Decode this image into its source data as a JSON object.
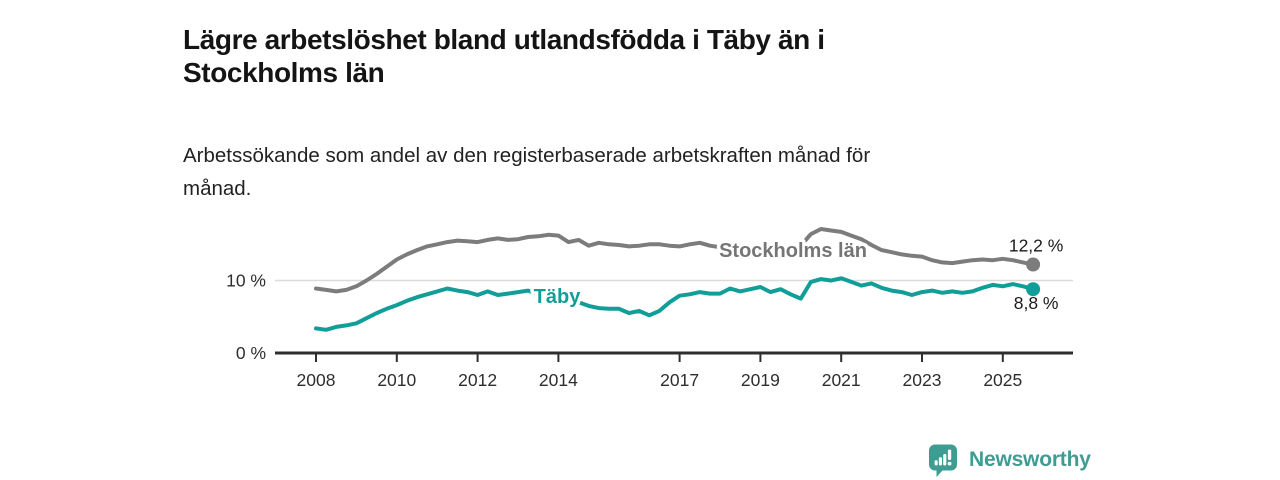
{
  "header": {
    "title_line1": "Lägre arbetslöshet bland utlandsfödda i Täby än i",
    "title_line2": "Stockholms län",
    "subtitle_line1": "Arbetssökande som andel av den registerbaserade arbetskraften månad för",
    "subtitle_line2": "månad."
  },
  "footer": {
    "brand_name": "Newsworthy",
    "logo_icon": "bar-chart-speech-bubble-icon"
  },
  "colors": {
    "accent_teal": "#119E98",
    "line_gray": "#7C7C7C",
    "label_gray": "#757575",
    "title_text": "#141414",
    "axis_text": "#2E2E2E",
    "axis_line": "#2E2E2E",
    "gridline": "#DBDBDB",
    "value_label_text": "#1A1A1A",
    "logo_teal": "#3F9C93",
    "background": "#FFFFFF"
  },
  "chart_data": {
    "type": "line",
    "title": "Lägre arbetslöshet bland utlandsfödda i Täby än i Stockholms län",
    "subtitle": "Arbetssökande som andel av den registerbaserade arbetskraften månad för månad.",
    "unit": "%",
    "grid": "single horizontal gridline at 10 %",
    "legend": "inline series labels on the lines",
    "x_start": 2008.0,
    "x_step": 0.25,
    "x_ticks": [
      {
        "year": 2008,
        "label": "2008"
      },
      {
        "year": 2010,
        "label": "2010"
      },
      {
        "year": 2012,
        "label": "2012"
      },
      {
        "year": 2014,
        "label": "2014"
      },
      {
        "year": 2017,
        "label": "2017"
      },
      {
        "year": 2019,
        "label": "2019"
      },
      {
        "year": 2021,
        "label": "2021"
      },
      {
        "year": 2023,
        "label": "2023"
      },
      {
        "year": 2025,
        "label": "2025"
      }
    ],
    "y_ticks": [
      {
        "value": 0,
        "label": "0 %",
        "gridline": false
      },
      {
        "value": 10,
        "label": "10 %",
        "gridline": true
      }
    ],
    "ylim": [
      0,
      19
    ],
    "series": [
      {
        "name": "Stockholms län",
        "color": "#7C7C7C",
        "label_color": "#757575",
        "end_label": "12,2 %",
        "end_value": 12.2,
        "values": [
          8.9,
          8.7,
          8.5,
          8.7,
          9.2,
          10.0,
          10.9,
          11.9,
          12.9,
          13.6,
          14.2,
          14.7,
          15.0,
          15.3,
          15.5,
          15.4,
          15.3,
          15.6,
          15.8,
          15.6,
          15.7,
          16.0,
          16.1,
          16.3,
          16.2,
          15.3,
          15.6,
          14.8,
          15.2,
          15.0,
          14.9,
          14.7,
          14.8,
          15.0,
          15.0,
          14.8,
          14.7,
          15.0,
          15.2,
          14.8,
          14.6,
          14.8,
          14.9,
          14.5,
          14.2,
          14.4,
          14.3,
          14.5,
          14.8,
          16.4,
          17.1,
          16.9,
          16.7,
          16.2,
          15.7,
          14.9,
          14.2,
          13.9,
          13.6,
          13.4,
          13.3,
          12.8,
          12.5,
          12.4,
          12.6,
          12.8,
          12.9,
          12.8,
          13.0,
          12.8,
          12.5,
          12.2
        ]
      },
      {
        "name": "Täby",
        "color": "#119E98",
        "label_color": "#119E98",
        "end_label": "8,8 %",
        "end_value": 8.8,
        "values": [
          3.4,
          3.2,
          3.6,
          3.8,
          4.1,
          4.8,
          5.5,
          6.1,
          6.6,
          7.2,
          7.7,
          8.1,
          8.5,
          8.9,
          8.6,
          8.4,
          8.0,
          8.5,
          8.0,
          8.2,
          8.4,
          8.6,
          8.1,
          8.3,
          8.2,
          7.6,
          7.0,
          6.5,
          6.2,
          6.1,
          6.1,
          5.5,
          5.8,
          5.2,
          5.8,
          7.0,
          7.9,
          8.1,
          8.4,
          8.2,
          8.2,
          8.9,
          8.5,
          8.8,
          9.1,
          8.4,
          8.8,
          8.1,
          7.5,
          9.8,
          10.2,
          10.0,
          10.3,
          9.8,
          9.3,
          9.6,
          9.0,
          8.6,
          8.4,
          8.0,
          8.4,
          8.6,
          8.3,
          8.5,
          8.3,
          8.5,
          9.0,
          9.4,
          9.2,
          9.5,
          9.2,
          8.8
        ]
      }
    ]
  }
}
